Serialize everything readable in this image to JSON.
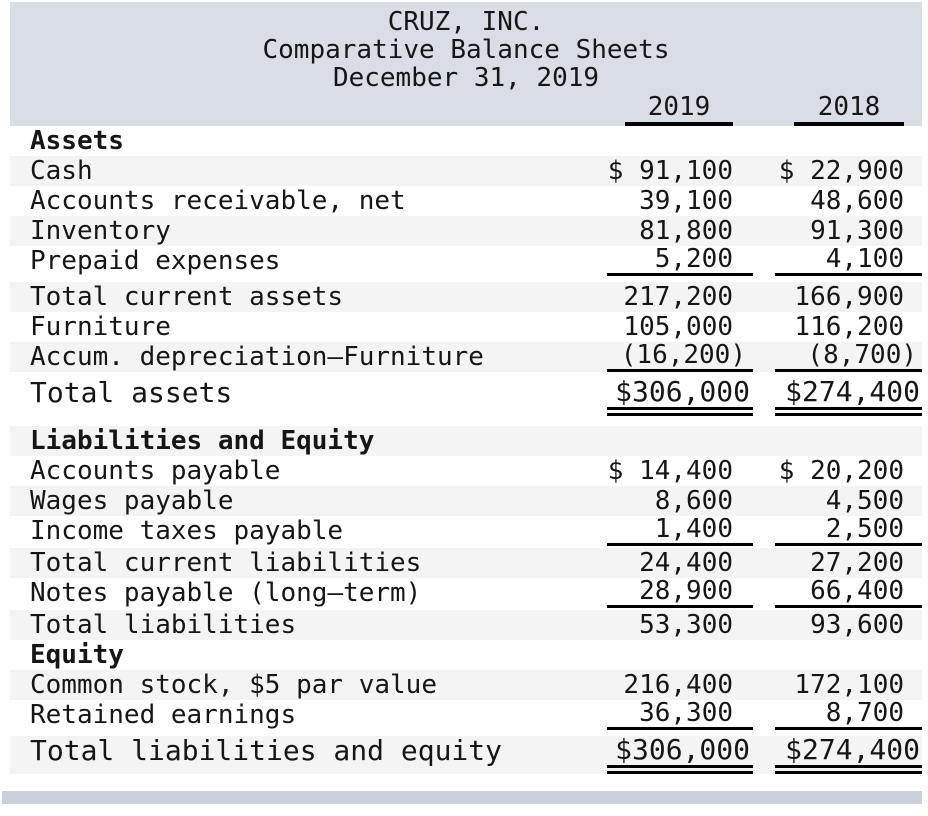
{
  "sheet": {
    "company": "CRUZ, INC.",
    "subtitle": "Comparative Balance Sheets",
    "date": "December 31, 2019",
    "col_headers": [
      "2019",
      "2018"
    ]
  },
  "rows": [
    {
      "label": "Assets"
    },
    {
      "label": "Cash",
      "y2019": "$ 91,100",
      "y2018": "$ 22,900"
    },
    {
      "label": "Accounts receivable, net",
      "y2019": "39,100",
      "y2018": "48,600"
    },
    {
      "label": "Inventory",
      "y2019": "81,800",
      "y2018": "91,300"
    },
    {
      "label": "Prepaid expenses",
      "y2019": "5,200",
      "y2018": "4,100"
    },
    {
      "label": "Total current assets",
      "y2019": "217,200",
      "y2018": "166,900"
    },
    {
      "label": "Furniture",
      "y2019": "105,000",
      "y2018": "116,200"
    },
    {
      "label": "Accum. depreciation—Furniture",
      "y2019": "(16,200)",
      "y2018": "(8,700)"
    },
    {
      "label": "Total assets",
      "y2019": "$306,000",
      "y2018": "$274,400"
    },
    {
      "label": "Liabilities and Equity"
    },
    {
      "label": "Accounts payable",
      "y2019": "$ 14,400",
      "y2018": "$ 20,200"
    },
    {
      "label": "Wages payable",
      "y2019": "8,600",
      "y2018": "4,500"
    },
    {
      "label": "Income taxes payable",
      "y2019": "1,400",
      "y2018": "2,500"
    },
    {
      "label": "Total current liabilities",
      "y2019": "24,400",
      "y2018": "27,200"
    },
    {
      "label": "Notes payable (long–term)",
      "y2019": "28,900",
      "y2018": "66,400"
    },
    {
      "label": "Total liabilities",
      "y2019": "53,300",
      "y2018": "93,600"
    },
    {
      "label": "Equity"
    },
    {
      "label": "Common stock, $5 par value",
      "y2019": "216,400",
      "y2018": "172,100"
    },
    {
      "label": "Retained earnings",
      "y2019": "36,300",
      "y2018": "8,700"
    },
    {
      "label": "Total liabilities and equity",
      "y2019": "$306,000",
      "y2018": "$274,400"
    }
  ],
  "colors": {
    "header_background": "#d9dde5",
    "stripe_background": "#f4f4f5",
    "bottom_bar": "#cbd1dc",
    "text": "#161616",
    "rule": "#000000"
  }
}
